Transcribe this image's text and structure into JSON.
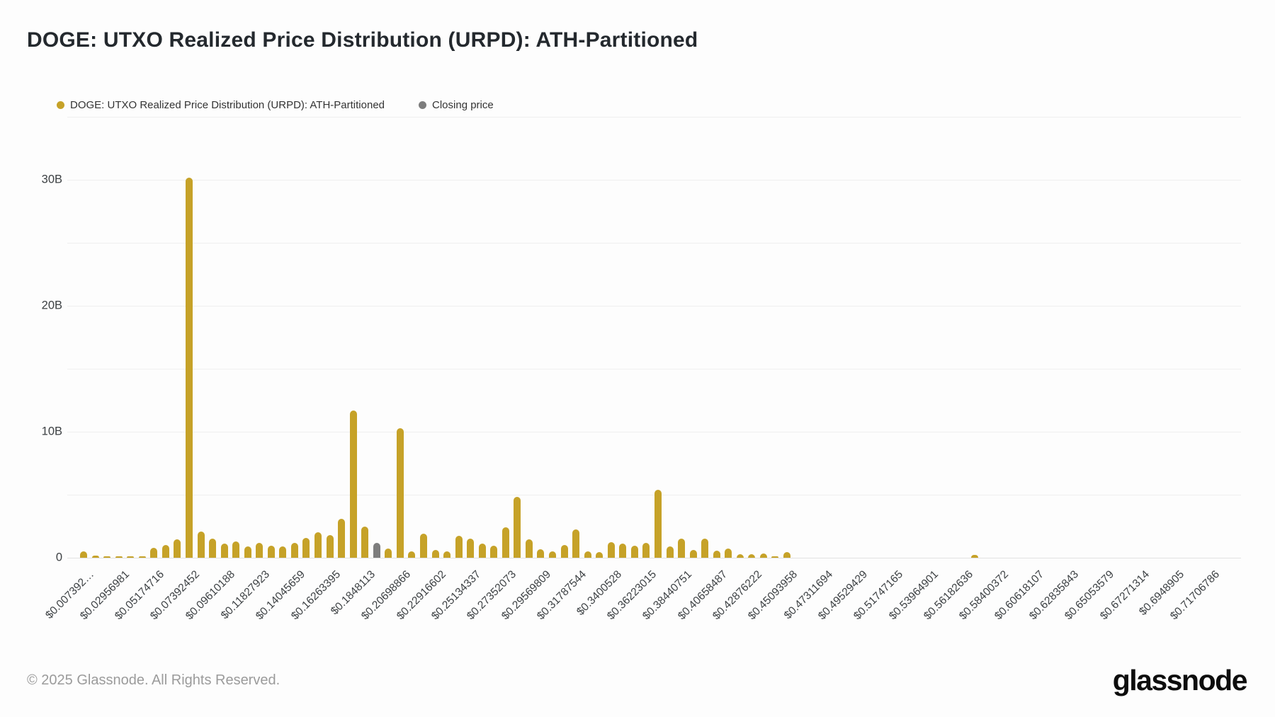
{
  "title": "DOGE: UTXO Realized Price Distribution (URPD): ATH-Partitioned",
  "legend": {
    "series1": {
      "label": "DOGE: UTXO Realized Price Distribution (URPD): ATH-Partitioned",
      "color": "#C6A228"
    },
    "series2": {
      "label": "Closing price",
      "color": "#7D7D7D"
    }
  },
  "footer": {
    "copyright": "© 2025 Glassnode. All Rights Reserved.",
    "logo_text": "glassnode"
  },
  "chart_data": {
    "type": "bar",
    "title": "DOGE: UTXO Realized Price Distribution (URPD): ATH-Partitioned",
    "xlabel": "",
    "ylabel": "",
    "y_unit": "B (billions of DOGE)",
    "ylim": [
      0,
      35
    ],
    "grid": "horizontal, every 5B",
    "legend_position": "top-left",
    "bar_color": "#C6A228",
    "closing_price_bar_color": "#7D7D7D",
    "closing_price_bin": 26,
    "first_bin_usd": 0.00739245,
    "bin_width_usd": 0.00739245,
    "y_ticks": [
      {
        "text": "0",
        "value": 0
      },
      {
        "text": "10B",
        "value": 10
      },
      {
        "text": "20B",
        "value": 20
      },
      {
        "text": "30B",
        "value": 30
      }
    ],
    "x_tick_every_n_bins": 3,
    "x_tick_labels": [
      "$0.007392…",
      "$0.02956981",
      "$0.05174716",
      "$0.07392452",
      "$0.09610188",
      "$0.11827923",
      "$0.14045659",
      "$0.16263395",
      "$0.1848113",
      "$0.20698866",
      "$0.22916602",
      "$0.25134337",
      "$0.27352073",
      "$0.29569809",
      "$0.31787544",
      "$0.3400528",
      "$0.36223015",
      "$0.38440751",
      "$0.40658487",
      "$0.42876222",
      "$0.45093958",
      "$0.47311694",
      "$0.49529429",
      "$0.51747165",
      "$0.53964901",
      "$0.56182636",
      "$0.58400372",
      "$0.60618107",
      "$0.62835843",
      "$0.65053579",
      "$0.67271314",
      "$0.6948905",
      "$0.71706786"
    ],
    "values_b": [
      0.5,
      0.15,
      0.05,
      0.07,
      0.07,
      0.12,
      0.8,
      1.0,
      1.45,
      30.2,
      2.1,
      1.5,
      1.1,
      1.3,
      0.9,
      1.2,
      0.95,
      0.9,
      1.2,
      1.6,
      2.0,
      1.8,
      3.1,
      11.7,
      2.5,
      1.2,
      0.75,
      10.3,
      0.5,
      1.9,
      0.6,
      0.5,
      1.75,
      1.5,
      1.1,
      0.95,
      2.4,
      4.85,
      1.45,
      0.7,
      0.5,
      1.0,
      2.25,
      0.5,
      0.45,
      1.25,
      1.1,
      0.95,
      1.2,
      5.4,
      0.9,
      1.5,
      0.62,
      1.5,
      0.55,
      0.75,
      0.28,
      0.3,
      0.32,
      0.08,
      0.45,
      0,
      0,
      0,
      0,
      0,
      0,
      0,
      0,
      0,
      0,
      0,
      0,
      0,
      0,
      0,
      0.22,
      0,
      0,
      0,
      0,
      0,
      0,
      0,
      0,
      0,
      0,
      0,
      0,
      0,
      0,
      0,
      0,
      0,
      0,
      0,
      0
    ]
  }
}
